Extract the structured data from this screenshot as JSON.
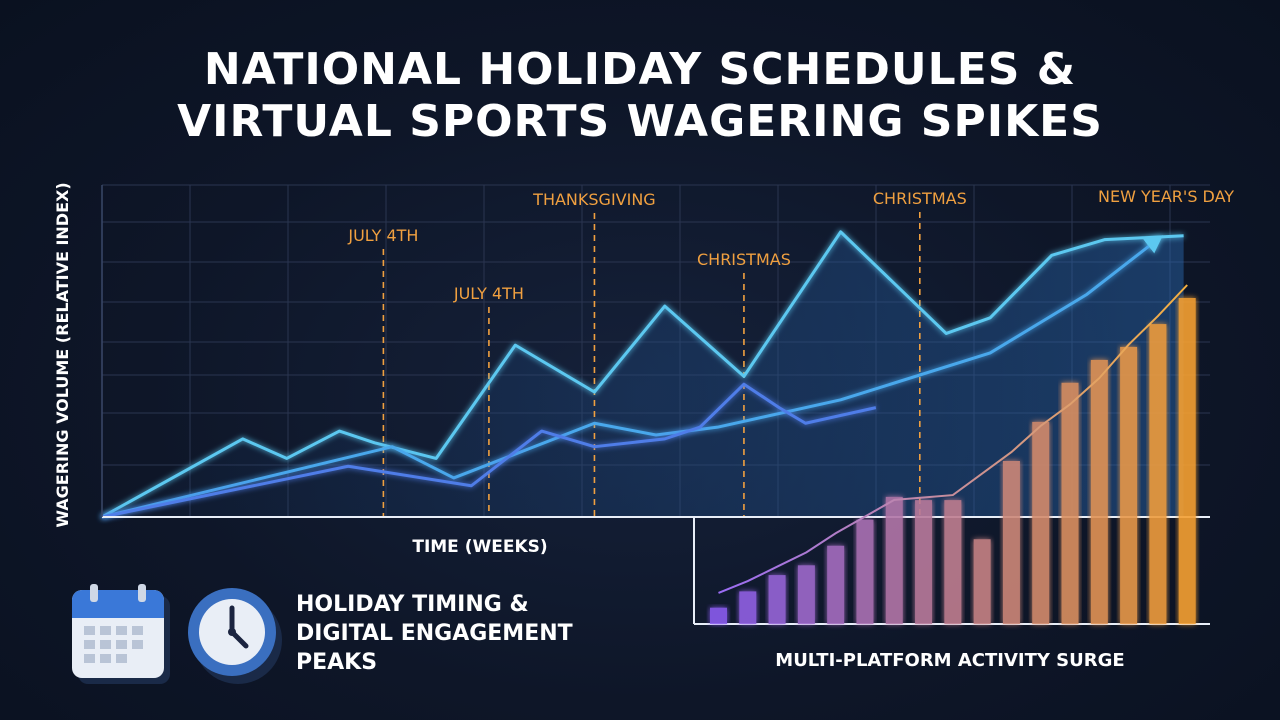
{
  "title": {
    "line1": "NATIONAL HOLIDAY SCHEDULES &",
    "line2": "VIRTUAL SPORTS WAGERING SPIKES"
  },
  "side_caption": {
    "line1": "HOLIDAY TIMING &",
    "line2": "DIGITAL ENGAGEMENT",
    "line3": "PEAKS"
  },
  "icons": [
    "calendar-icon",
    "clock-icon"
  ],
  "colors": {
    "background": "#0e1628",
    "grid": "#2a3550",
    "line_light": "#5cc8f0",
    "line_mid": "#4aa8ec",
    "line_dark": "#4f7de8",
    "annotation": "#f0a040",
    "bar_start": "#8a5cf0",
    "bar_end": "#f5a030"
  },
  "chart_data": [
    {
      "type": "line",
      "title": "",
      "xlabel": "TIME (WEEKS)",
      "ylabel": "WAGERING VOLUME (RELATIVE INDEX)",
      "grid": true,
      "series": [
        {
          "x": [
            0,
            1.6,
            2.1,
            2.7,
            3.1,
            3.8,
            4.7,
            5.6,
            6.4,
            7.3,
            8.4,
            9.6,
            10.1,
            10.8,
            11.4,
            12.3
          ],
          "values": [
            0,
            2.0,
            1.5,
            2.2,
            1.9,
            1.5,
            4.4,
            3.2,
            5.4,
            3.6,
            7.3,
            4.7,
            5.1,
            6.7,
            7.1,
            7.2
          ]
        },
        {
          "x": [
            0,
            3.3,
            4.0,
            5.6,
            6.3,
            7.0,
            8.4,
            10.1,
            11.2,
            12.0
          ],
          "values": [
            0,
            1.8,
            1.0,
            2.4,
            2.1,
            2.3,
            3.0,
            4.2,
            5.7,
            7.1
          ]
        },
        {
          "x": [
            0,
            2.8,
            4.2,
            5.0,
            5.6,
            6.4,
            6.8,
            7.3,
            7.7,
            8.0,
            8.8
          ],
          "values": [
            0,
            1.3,
            0.8,
            2.2,
            1.8,
            2.0,
            2.3,
            3.4,
            2.8,
            2.4,
            2.8
          ]
        }
      ],
      "annotations": [
        {
          "label": "JULY 4TH",
          "x": 3.2
        },
        {
          "label": "JULY 4TH",
          "x": 4.4
        },
        {
          "label": "THANKSGIVING",
          "x": 5.6
        },
        {
          "label": "CHRISTMAS",
          "x": 7.3
        },
        {
          "label": "CHRISTMAS",
          "x": 9.3
        },
        {
          "label": "NEW YEAR'S DAY",
          "x": 12.1
        }
      ]
    },
    {
      "type": "bar",
      "title": "MULTI-PLATFORM ACTIVITY SURGE",
      "xlabel": "",
      "ylabel": "",
      "ylim": [
        0,
        10
      ],
      "values": [
        0.5,
        1.0,
        1.5,
        1.8,
        2.4,
        3.2,
        3.9,
        3.8,
        3.8,
        2.6,
        5.0,
        6.2,
        7.4,
        8.1,
        8.5,
        9.2,
        10.0
      ],
      "trend_line": [
        1.3,
        1.8,
        2.4,
        3.0,
        3.8,
        4.5,
        5.2,
        5.3,
        5.4,
        6.3,
        7.2,
        8.3,
        9.2,
        10.3,
        11.7,
        12.9,
        14.2
      ]
    }
  ]
}
